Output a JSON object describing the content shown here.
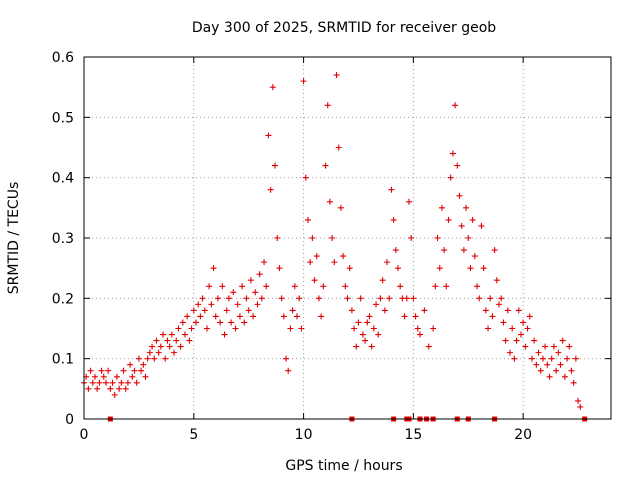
{
  "chart_data": {
    "type": "scatter",
    "title": "Day 300 of 2025, SRMTID for receiver geob",
    "xlabel": "GPS time / hours",
    "ylabel": "SRMTID / TECUs",
    "xlim": [
      0,
      24
    ],
    "ylim": [
      0,
      0.6
    ],
    "xticks": [
      0,
      5,
      10,
      15,
      20
    ],
    "yticks": [
      0,
      0.1,
      0.2,
      0.3,
      0.4,
      0.5,
      0.6
    ],
    "xtick_labels": [
      "0",
      "5",
      "10",
      "15",
      "20"
    ],
    "ytick_labels": [
      "0",
      "0.1",
      "0.2",
      "0.3",
      "0.4",
      "0.5",
      "0.6"
    ],
    "grid": true,
    "series": [
      {
        "name": "SRMTID",
        "marker": "plus",
        "color": "#e00000",
        "points": [
          [
            0.0,
            0.06
          ],
          [
            0.1,
            0.07
          ],
          [
            0.2,
            0.05
          ],
          [
            0.3,
            0.08
          ],
          [
            0.4,
            0.06
          ],
          [
            0.5,
            0.07
          ],
          [
            0.6,
            0.05
          ],
          [
            0.7,
            0.06
          ],
          [
            0.8,
            0.08
          ],
          [
            0.9,
            0.07
          ],
          [
            1.0,
            0.06
          ],
          [
            1.1,
            0.08
          ],
          [
            1.2,
            0.05
          ],
          [
            1.3,
            0.06
          ],
          [
            1.4,
            0.04
          ],
          [
            1.5,
            0.07
          ],
          [
            1.6,
            0.05
          ],
          [
            1.7,
            0.06
          ],
          [
            1.8,
            0.08
          ],
          [
            1.9,
            0.05
          ],
          [
            2.0,
            0.06
          ],
          [
            2.1,
            0.09
          ],
          [
            2.2,
            0.07
          ],
          [
            2.3,
            0.08
          ],
          [
            2.4,
            0.06
          ],
          [
            2.5,
            0.1
          ],
          [
            2.6,
            0.08
          ],
          [
            2.7,
            0.09
          ],
          [
            2.8,
            0.07
          ],
          [
            2.9,
            0.1
          ],
          [
            3.0,
            0.11
          ],
          [
            3.1,
            0.12
          ],
          [
            3.2,
            0.1
          ],
          [
            3.3,
            0.13
          ],
          [
            3.4,
            0.11
          ],
          [
            3.5,
            0.12
          ],
          [
            3.6,
            0.14
          ],
          [
            3.7,
            0.1
          ],
          [
            3.8,
            0.13
          ],
          [
            3.9,
            0.12
          ],
          [
            4.0,
            0.14
          ],
          [
            4.1,
            0.11
          ],
          [
            4.2,
            0.13
          ],
          [
            4.3,
            0.15
          ],
          [
            4.4,
            0.12
          ],
          [
            4.5,
            0.16
          ],
          [
            4.6,
            0.14
          ],
          [
            4.7,
            0.17
          ],
          [
            4.8,
            0.13
          ],
          [
            4.9,
            0.15
          ],
          [
            5.0,
            0.18
          ],
          [
            5.1,
            0.16
          ],
          [
            5.2,
            0.19
          ],
          [
            5.3,
            0.17
          ],
          [
            5.4,
            0.2
          ],
          [
            5.5,
            0.18
          ],
          [
            5.6,
            0.15
          ],
          [
            5.7,
            0.22
          ],
          [
            5.8,
            0.19
          ],
          [
            5.9,
            0.25
          ],
          [
            6.0,
            0.17
          ],
          [
            6.1,
            0.2
          ],
          [
            6.2,
            0.16
          ],
          [
            6.3,
            0.22
          ],
          [
            6.4,
            0.14
          ],
          [
            6.5,
            0.18
          ],
          [
            6.6,
            0.2
          ],
          [
            6.7,
            0.16
          ],
          [
            6.8,
            0.21
          ],
          [
            6.9,
            0.15
          ],
          [
            7.0,
            0.19
          ],
          [
            7.1,
            0.17
          ],
          [
            7.2,
            0.22
          ],
          [
            7.3,
            0.16
          ],
          [
            7.4,
            0.2
          ],
          [
            7.5,
            0.18
          ],
          [
            7.6,
            0.23
          ],
          [
            7.7,
            0.17
          ],
          [
            7.8,
            0.21
          ],
          [
            7.9,
            0.19
          ],
          [
            8.0,
            0.24
          ],
          [
            8.1,
            0.2
          ],
          [
            8.2,
            0.26
          ],
          [
            8.3,
            0.22
          ],
          [
            8.4,
            0.47
          ],
          [
            8.5,
            0.38
          ],
          [
            8.6,
            0.55
          ],
          [
            8.7,
            0.42
          ],
          [
            8.8,
            0.3
          ],
          [
            8.9,
            0.25
          ],
          [
            9.0,
            0.2
          ],
          [
            9.1,
            0.17
          ],
          [
            9.2,
            0.1
          ],
          [
            9.3,
            0.08
          ],
          [
            9.4,
            0.15
          ],
          [
            9.5,
            0.18
          ],
          [
            9.6,
            0.22
          ],
          [
            9.7,
            0.17
          ],
          [
            9.8,
            0.2
          ],
          [
            9.9,
            0.15
          ],
          [
            10.0,
            0.56
          ],
          [
            10.1,
            0.4
          ],
          [
            10.2,
            0.33
          ],
          [
            10.3,
            0.26
          ],
          [
            10.4,
            0.3
          ],
          [
            10.5,
            0.23
          ],
          [
            10.6,
            0.27
          ],
          [
            10.7,
            0.2
          ],
          [
            10.8,
            0.17
          ],
          [
            10.9,
            0.22
          ],
          [
            11.0,
            0.42
          ],
          [
            11.1,
            0.52
          ],
          [
            11.2,
            0.36
          ],
          [
            11.3,
            0.3
          ],
          [
            11.4,
            0.26
          ],
          [
            11.5,
            0.57
          ],
          [
            11.6,
            0.45
          ],
          [
            11.7,
            0.35
          ],
          [
            11.8,
            0.27
          ],
          [
            11.9,
            0.22
          ],
          [
            12.0,
            0.2
          ],
          [
            12.1,
            0.25
          ],
          [
            12.2,
            0.18
          ],
          [
            12.3,
            0.15
          ],
          [
            12.4,
            0.12
          ],
          [
            12.5,
            0.16
          ],
          [
            12.6,
            0.2
          ],
          [
            12.7,
            0.14
          ],
          [
            12.8,
            0.13
          ],
          [
            12.9,
            0.16
          ],
          [
            13.0,
            0.17
          ],
          [
            13.1,
            0.12
          ],
          [
            13.2,
            0.15
          ],
          [
            13.3,
            0.19
          ],
          [
            13.4,
            0.14
          ],
          [
            13.5,
            0.2
          ],
          [
            13.6,
            0.23
          ],
          [
            13.7,
            0.18
          ],
          [
            13.8,
            0.26
          ],
          [
            13.9,
            0.2
          ],
          [
            14.0,
            0.38
          ],
          [
            14.1,
            0.33
          ],
          [
            14.2,
            0.28
          ],
          [
            14.3,
            0.25
          ],
          [
            14.4,
            0.22
          ],
          [
            14.5,
            0.2
          ],
          [
            14.6,
            0.17
          ],
          [
            14.7,
            0.2
          ],
          [
            14.8,
            0.36
          ],
          [
            14.9,
            0.3
          ],
          [
            15.0,
            0.2
          ],
          [
            15.1,
            0.17
          ],
          [
            15.2,
            0.15
          ],
          [
            15.3,
            0.14
          ],
          [
            15.5,
            0.18
          ],
          [
            15.7,
            0.12
          ],
          [
            15.9,
            0.15
          ],
          [
            16.0,
            0.22
          ],
          [
            16.1,
            0.3
          ],
          [
            16.2,
            0.25
          ],
          [
            16.3,
            0.35
          ],
          [
            16.4,
            0.28
          ],
          [
            16.5,
            0.22
          ],
          [
            16.6,
            0.33
          ],
          [
            16.7,
            0.4
          ],
          [
            16.8,
            0.44
          ],
          [
            16.9,
            0.52
          ],
          [
            17.0,
            0.42
          ],
          [
            17.1,
            0.37
          ],
          [
            17.2,
            0.32
          ],
          [
            17.3,
            0.28
          ],
          [
            17.4,
            0.35
          ],
          [
            17.5,
            0.3
          ],
          [
            17.6,
            0.25
          ],
          [
            17.7,
            0.33
          ],
          [
            17.8,
            0.27
          ],
          [
            17.9,
            0.22
          ],
          [
            18.0,
            0.2
          ],
          [
            18.1,
            0.32
          ],
          [
            18.2,
            0.25
          ],
          [
            18.3,
            0.18
          ],
          [
            18.4,
            0.15
          ],
          [
            18.5,
            0.2
          ],
          [
            18.6,
            0.17
          ],
          [
            18.7,
            0.28
          ],
          [
            18.8,
            0.23
          ],
          [
            18.9,
            0.19
          ],
          [
            19.0,
            0.2
          ],
          [
            19.1,
            0.16
          ],
          [
            19.2,
            0.13
          ],
          [
            19.3,
            0.18
          ],
          [
            19.4,
            0.11
          ],
          [
            19.5,
            0.15
          ],
          [
            19.6,
            0.1
          ],
          [
            19.7,
            0.13
          ],
          [
            19.8,
            0.18
          ],
          [
            19.9,
            0.14
          ],
          [
            20.0,
            0.16
          ],
          [
            20.1,
            0.12
          ],
          [
            20.2,
            0.15
          ],
          [
            20.3,
            0.17
          ],
          [
            20.4,
            0.1
          ],
          [
            20.5,
            0.13
          ],
          [
            20.6,
            0.09
          ],
          [
            20.7,
            0.11
          ],
          [
            20.8,
            0.08
          ],
          [
            20.9,
            0.1
          ],
          [
            21.0,
            0.12
          ],
          [
            21.1,
            0.09
          ],
          [
            21.2,
            0.07
          ],
          [
            21.3,
            0.1
          ],
          [
            21.4,
            0.12
          ],
          [
            21.5,
            0.08
          ],
          [
            21.6,
            0.11
          ],
          [
            21.7,
            0.09
          ],
          [
            21.8,
            0.13
          ],
          [
            21.9,
            0.07
          ],
          [
            22.0,
            0.1
          ],
          [
            22.1,
            0.12
          ],
          [
            22.2,
            0.08
          ],
          [
            22.3,
            0.06
          ],
          [
            22.4,
            0.1
          ],
          [
            22.5,
            0.03
          ],
          [
            22.6,
            0.02
          ]
        ]
      }
    ],
    "zero_markers": [
      1.2,
      12.2,
      14.1,
      14.7,
      14.8,
      15.3,
      15.6,
      15.9,
      17.0,
      17.5,
      18.7,
      22.8
    ]
  }
}
